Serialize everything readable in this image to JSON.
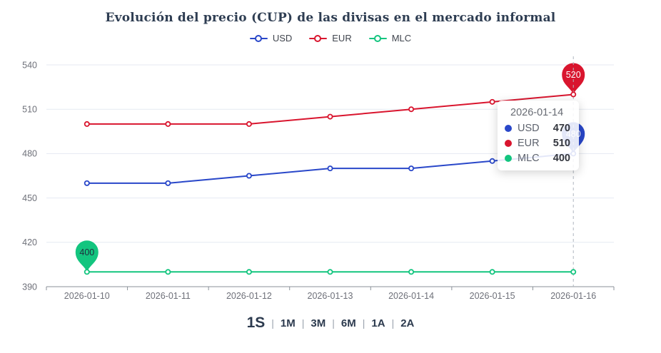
{
  "title": "Evolución del precio (CUP) de las divisas en el mercado informal",
  "chart_data": {
    "type": "line",
    "x": [
      "2026-01-10",
      "2026-01-11",
      "2026-01-12",
      "2026-01-13",
      "2026-01-14",
      "2026-01-15",
      "2026-01-16"
    ],
    "series": [
      {
        "name": "USD",
        "color": "#2947c9",
        "values": [
          460,
          460,
          465,
          470,
          470,
          475,
          480
        ]
      },
      {
        "name": "EUR",
        "color": "#d9152e",
        "values": [
          500,
          500,
          500,
          505,
          510,
          515,
          520
        ]
      },
      {
        "name": "MLC",
        "color": "#13c57f",
        "values": [
          400,
          400,
          400,
          400,
          400,
          400,
          400
        ]
      }
    ],
    "ylim": [
      390,
      540
    ],
    "yticks": [
      390,
      420,
      450,
      480,
      510,
      540
    ],
    "grid": true,
    "legend_position": "top",
    "markers": [
      {
        "series": "MLC",
        "x": "2026-01-10",
        "value": 400,
        "label": "400",
        "label_color": "#1f2d3d"
      },
      {
        "series": "USD",
        "x": "2026-01-16",
        "value": 480,
        "label": "480",
        "label_color": "#ffffff"
      },
      {
        "series": "EUR",
        "x": "2026-01-16",
        "value": 520,
        "label": "520",
        "label_color": "#ffffff"
      }
    ],
    "cursor_x": "2026-01-16"
  },
  "tooltip": {
    "date": "2026-01-14",
    "rows": [
      {
        "series": "USD",
        "label": "USD",
        "value": "470"
      },
      {
        "series": "EUR",
        "label": "EUR",
        "value": "510"
      },
      {
        "series": "MLC",
        "label": "MLC",
        "value": "400"
      }
    ]
  },
  "range_selector": {
    "options": [
      "1S",
      "1M",
      "3M",
      "6M",
      "1A",
      "2A"
    ],
    "selected": "1S",
    "separator": "|"
  },
  "colors": {
    "title": "#2e3d52",
    "axis_label": "#6e7079",
    "axis_line": "#8b9299",
    "gridline": "#e6eaf2",
    "cursor_line": "#b0b6bf",
    "tooltip_bg": "#ffffff"
  }
}
